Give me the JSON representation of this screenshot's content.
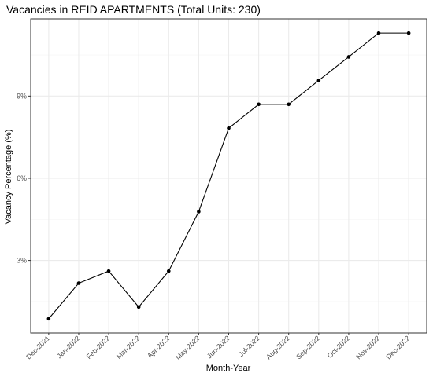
{
  "chart_data": {
    "type": "line",
    "title": "Vacancies in REID APARTMENTS (Total Units: 230)",
    "xlabel": "Month-Year",
    "ylabel": "Vacancy Percentage (%)",
    "categories": [
      "Dec-2021",
      "Jan-2022",
      "Feb-2022",
      "Mar-2022",
      "Apr-2022",
      "May-2022",
      "Jun-2022",
      "Jul-2022",
      "Aug-2022",
      "Sep-2022",
      "Oct-2022",
      "Nov-2022",
      "Dec-2022"
    ],
    "series": [
      {
        "values": [
          0.87,
          2.17,
          2.61,
          1.3,
          2.61,
          4.78,
          7.83,
          8.7,
          8.7,
          9.57,
          10.43,
          11.3,
          11.3
        ]
      }
    ],
    "y_ticks": [
      3,
      6,
      9
    ],
    "y_tick_labels": [
      "3%",
      "6%",
      "9%"
    ],
    "ylim": [
      0.35,
      11.82
    ],
    "grid": true,
    "legend": "none",
    "colors": {
      "line": "#000000",
      "point": "#000000",
      "panel_border": "#333333",
      "grid_major": "#ebebeb",
      "grid_minor": "#f5f5f5",
      "tick_label": "#4d4d4d"
    }
  }
}
